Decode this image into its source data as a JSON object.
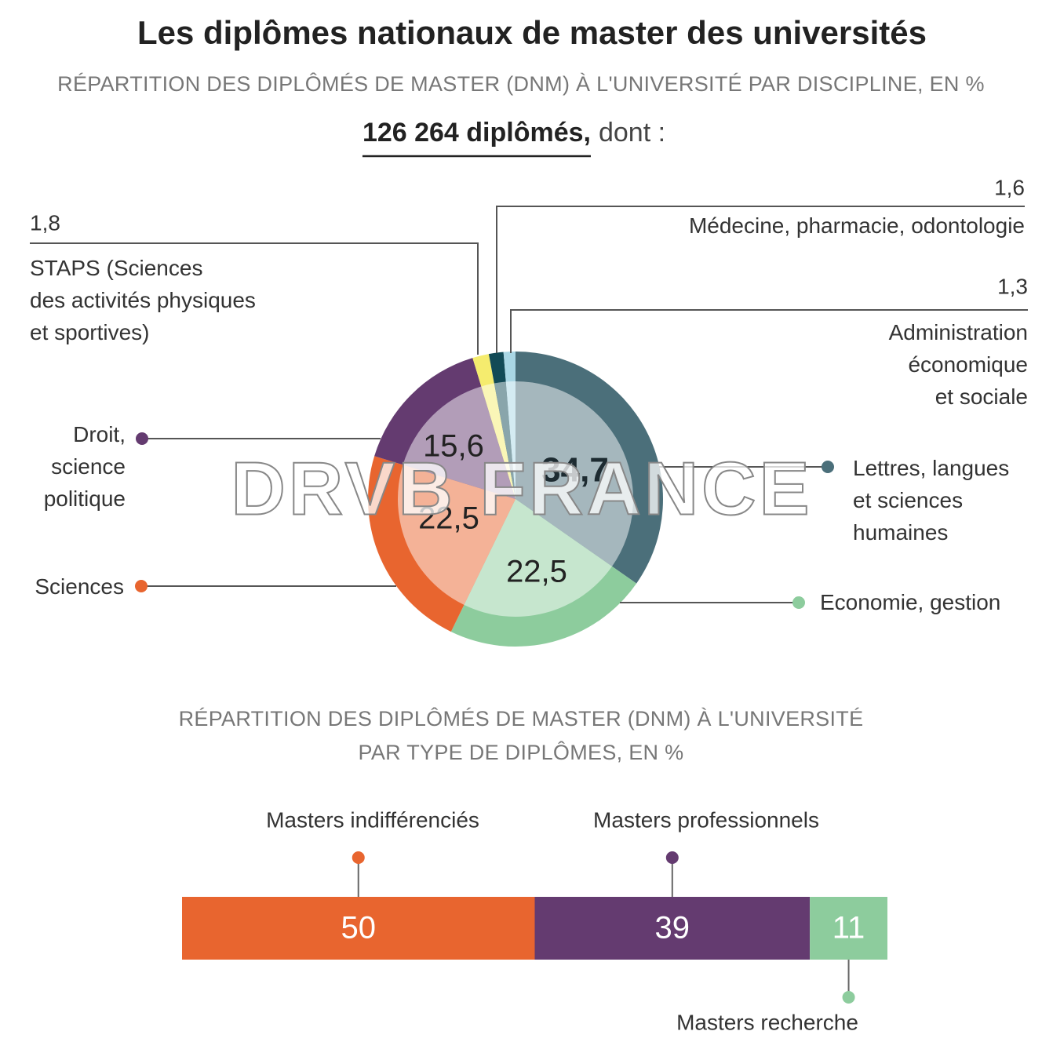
{
  "title": "Les diplômes nationaux de master des universités",
  "total": "126 264 diplômés,",
  "total_suffix": "dont :",
  "watermark": "DRVB FRANCE",
  "chart_data": [
    {
      "type": "pie",
      "title": "RÉPARTITION DES DIPLÔMÉS DE MASTER (DNM) À L'UNIVERSITÉ PAR DISCIPLINE, EN %",
      "categories": [
        "Lettres, langues\net sciences\nhumaines",
        "Economie, gestion",
        "Sciences",
        "Droit,\nscience\npolitique",
        "STAPS (Sciences\ndes activités physiques\net sportives)",
        "Médecine, pharmacie, odontologie",
        "Administration\néconomique\net sociale"
      ],
      "values": [
        34.7,
        22.5,
        22.5,
        15.6,
        1.8,
        1.6,
        1.3
      ],
      "value_labels": [
        "34,7",
        "22,5",
        "22,5",
        "15,6",
        "1,8",
        "1,6",
        "1,3"
      ],
      "colors": [
        "#4b6f7a",
        "#8dcc9d",
        "#e8652f",
        "#643b70",
        "#f5ec6e",
        "#124a56",
        "#a9d6e4"
      ]
    },
    {
      "type": "stacked-bar",
      "title": "RÉPARTITION DES DIPLÔMÉS DE MASTER (DNM) À L'UNIVERSITÉ\nPAR TYPE DE DIPLÔMES, EN %",
      "categories": [
        "Masters indifférenciés",
        "Masters professionnels",
        "Masters recherche"
      ],
      "values": [
        50,
        39,
        11
      ],
      "colors": [
        "#e8652f",
        "#643b70",
        "#8dcc9d"
      ]
    }
  ]
}
